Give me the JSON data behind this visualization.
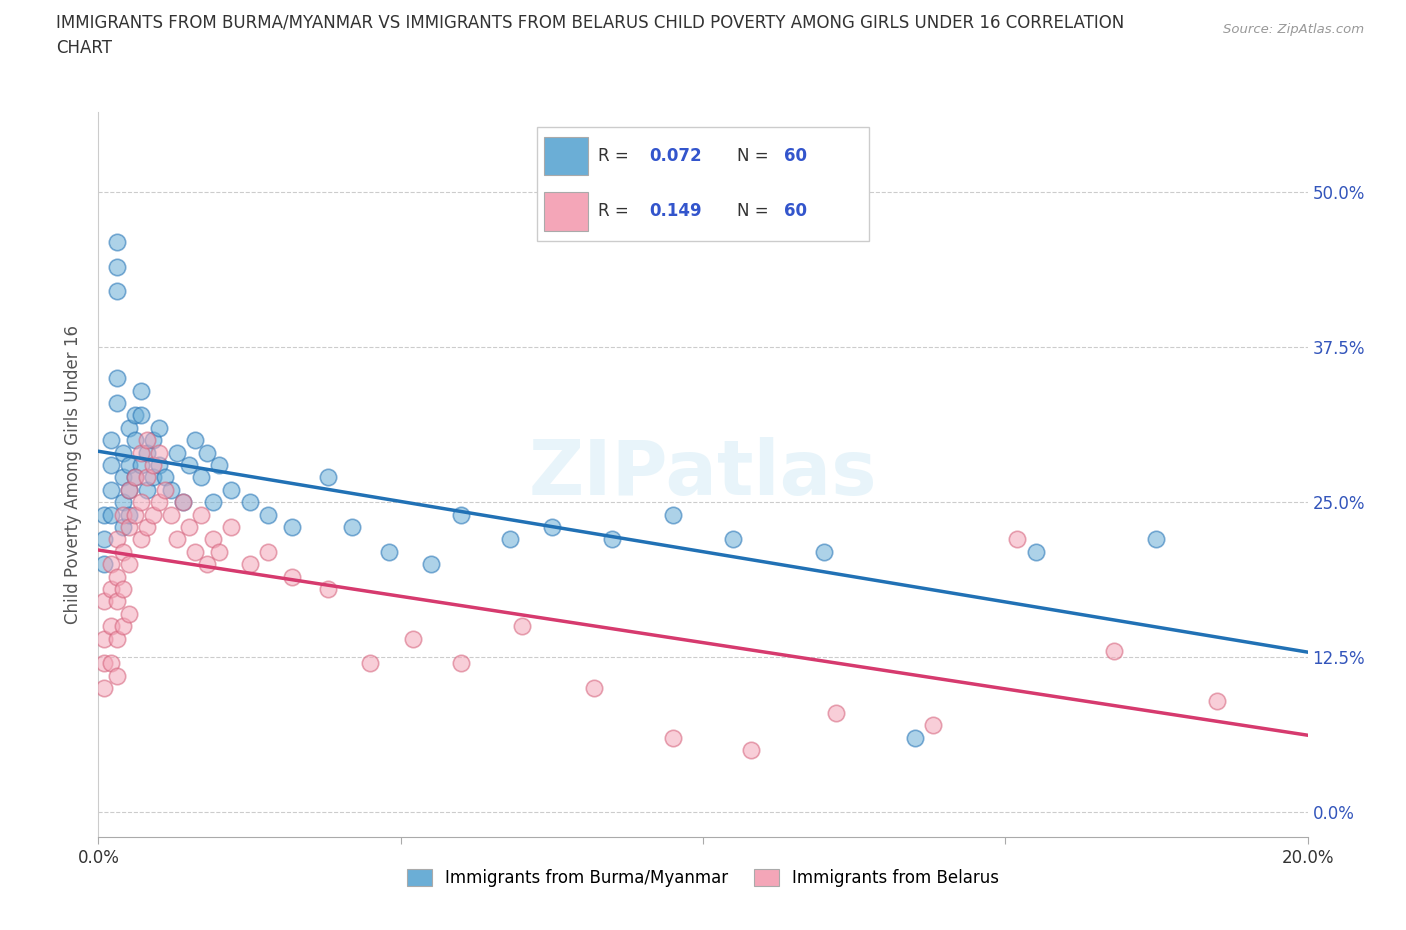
{
  "title": "IMMIGRANTS FROM BURMA/MYANMAR VS IMMIGRANTS FROM BELARUS CHILD POVERTY AMONG GIRLS UNDER 16 CORRELATION\nCHART",
  "source_text": "Source: ZipAtlas.com",
  "ylabel": "Child Poverty Among Girls Under 16",
  "xlim": [
    0.0,
    0.2
  ],
  "ylim": [
    -0.02,
    0.565
  ],
  "yticks": [
    0.0,
    0.125,
    0.25,
    0.375,
    0.5
  ],
  "ytick_labels": [
    "0.0%",
    "12.5%",
    "25.0%",
    "37.5%",
    "50.0%"
  ],
  "xticks": [
    0.0,
    0.05,
    0.1,
    0.15,
    0.2
  ],
  "xtick_labels": [
    "0.0%",
    "",
    "",
    "",
    "20.0%"
  ],
  "r_burma": 0.072,
  "n_burma": 60,
  "r_belarus": 0.149,
  "n_belarus": 60,
  "color_burma": "#6baed6",
  "color_burma_line": "#2171b5",
  "color_belarus": "#f4a6b8",
  "color_belarus_line": "#d63a6e",
  "legend_label_burma": "Immigrants from Burma/Myanmar",
  "legend_label_belarus": "Immigrants from Belarus",
  "burma_x": [
    0.001,
    0.001,
    0.001,
    0.002,
    0.002,
    0.002,
    0.002,
    0.003,
    0.003,
    0.003,
    0.003,
    0.003,
    0.004,
    0.004,
    0.004,
    0.004,
    0.005,
    0.005,
    0.005,
    0.005,
    0.006,
    0.006,
    0.006,
    0.007,
    0.007,
    0.007,
    0.008,
    0.008,
    0.009,
    0.009,
    0.01,
    0.01,
    0.011,
    0.012,
    0.013,
    0.014,
    0.015,
    0.016,
    0.017,
    0.018,
    0.019,
    0.02,
    0.022,
    0.025,
    0.028,
    0.032,
    0.038,
    0.042,
    0.048,
    0.055,
    0.06,
    0.068,
    0.075,
    0.085,
    0.095,
    0.105,
    0.12,
    0.135,
    0.155,
    0.175
  ],
  "burma_y": [
    0.24,
    0.22,
    0.2,
    0.3,
    0.28,
    0.26,
    0.24,
    0.46,
    0.44,
    0.42,
    0.35,
    0.33,
    0.29,
    0.27,
    0.25,
    0.23,
    0.31,
    0.28,
    0.26,
    0.24,
    0.32,
    0.3,
    0.27,
    0.34,
    0.32,
    0.28,
    0.29,
    0.26,
    0.3,
    0.27,
    0.31,
    0.28,
    0.27,
    0.26,
    0.29,
    0.25,
    0.28,
    0.3,
    0.27,
    0.29,
    0.25,
    0.28,
    0.26,
    0.25,
    0.24,
    0.23,
    0.27,
    0.23,
    0.21,
    0.2,
    0.24,
    0.22,
    0.23,
    0.22,
    0.24,
    0.22,
    0.21,
    0.06,
    0.21,
    0.22
  ],
  "belarus_x": [
    0.001,
    0.001,
    0.001,
    0.001,
    0.002,
    0.002,
    0.002,
    0.002,
    0.003,
    0.003,
    0.003,
    0.003,
    0.003,
    0.004,
    0.004,
    0.004,
    0.004,
    0.005,
    0.005,
    0.005,
    0.005,
    0.006,
    0.006,
    0.007,
    0.007,
    0.007,
    0.008,
    0.008,
    0.008,
    0.009,
    0.009,
    0.01,
    0.01,
    0.011,
    0.012,
    0.013,
    0.014,
    0.015,
    0.016,
    0.017,
    0.018,
    0.019,
    0.02,
    0.022,
    0.025,
    0.028,
    0.032,
    0.038,
    0.045,
    0.052,
    0.06,
    0.07,
    0.082,
    0.095,
    0.108,
    0.122,
    0.138,
    0.152,
    0.168,
    0.185
  ],
  "belarus_y": [
    0.17,
    0.14,
    0.12,
    0.1,
    0.2,
    0.18,
    0.15,
    0.12,
    0.22,
    0.19,
    0.17,
    0.14,
    0.11,
    0.24,
    0.21,
    0.18,
    0.15,
    0.26,
    0.23,
    0.2,
    0.16,
    0.27,
    0.24,
    0.29,
    0.25,
    0.22,
    0.3,
    0.27,
    0.23,
    0.28,
    0.24,
    0.29,
    0.25,
    0.26,
    0.24,
    0.22,
    0.25,
    0.23,
    0.21,
    0.24,
    0.2,
    0.22,
    0.21,
    0.23,
    0.2,
    0.21,
    0.19,
    0.18,
    0.12,
    0.14,
    0.12,
    0.15,
    0.1,
    0.06,
    0.05,
    0.08,
    0.07,
    0.22,
    0.13,
    0.09
  ]
}
